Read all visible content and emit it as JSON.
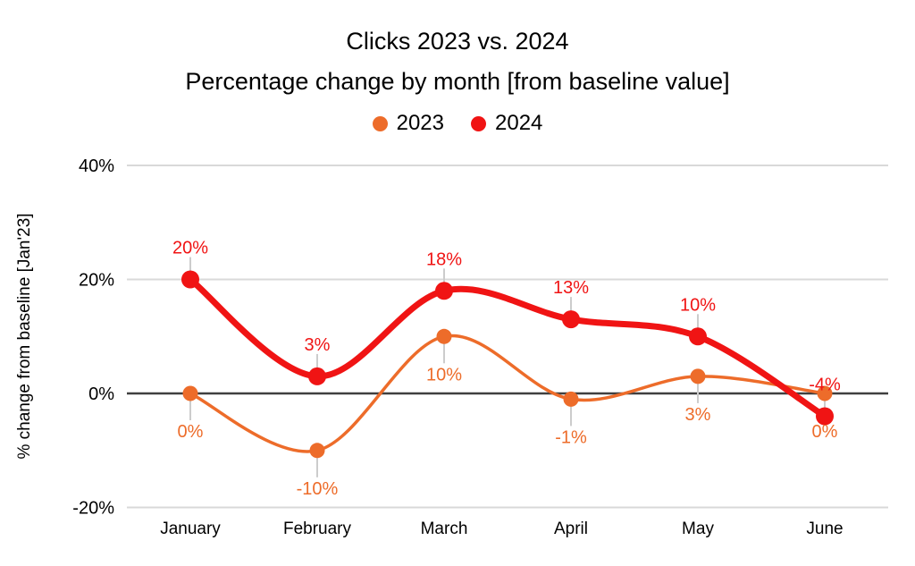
{
  "page": {
    "background_color": "#ffffff"
  },
  "chart_data": {
    "type": "line",
    "title": "Clicks 2023 vs. 2024",
    "subtitle": "Percentage change by month [from baseline value]",
    "legend_position": "top",
    "smooth": true,
    "grid": true,
    "categories": [
      "January",
      "February",
      "March",
      "April",
      "May",
      "June"
    ],
    "series": [
      {
        "name": "2023",
        "color": "#ED6C2A",
        "values": [
          0,
          -10,
          10,
          -1,
          3,
          0
        ],
        "point_labels": [
          "0%",
          "-10%",
          "10%",
          "-1%",
          "3%",
          "0%"
        ],
        "label_side": "below"
      },
      {
        "name": "2024",
        "color": "#F01414",
        "values": [
          20,
          3,
          18,
          13,
          10,
          -4
        ],
        "point_labels": [
          "20%",
          "3%",
          "18%",
          "13%",
          "10%",
          "-4%"
        ],
        "label_side": "above"
      }
    ],
    "ylabel": "% change from baseline [Jan'23]",
    "ylim": [
      -20,
      40
    ],
    "yticks": [
      {
        "value": 40,
        "label": "40%"
      },
      {
        "value": 20,
        "label": "20%"
      },
      {
        "value": 0,
        "label": "0%"
      },
      {
        "value": -20,
        "label": "-20%"
      }
    ],
    "colors": {
      "gridline": "#D9D9D9",
      "zero_line": "#3F3F3F",
      "leader_line": "#CCCCCC",
      "axis_text": "#000000"
    }
  }
}
